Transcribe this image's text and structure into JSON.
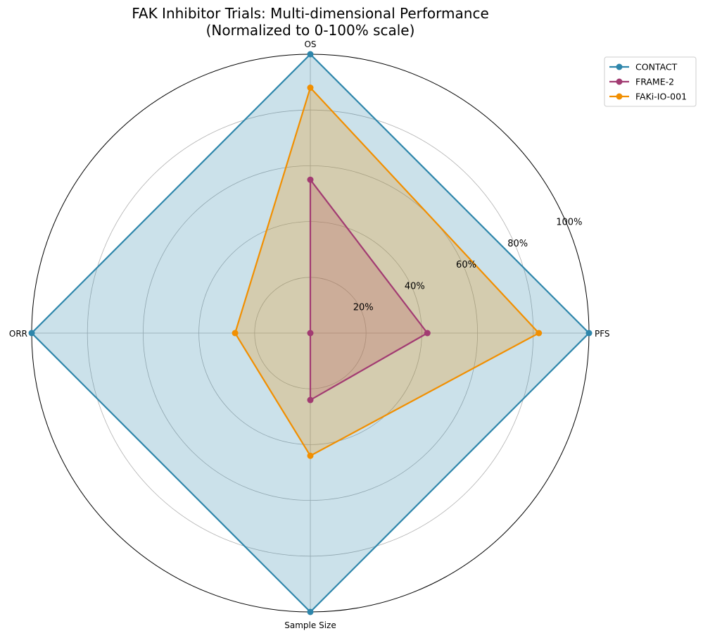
{
  "chart_data": {
    "type": "radar",
    "title": "FAK Inhibitor Trials: Multi-dimensional Performance",
    "subtitle": "(Normalized to 0-100% scale)",
    "categories": [
      "PFS",
      "OS",
      "ORR",
      "Sample Size"
    ],
    "rlim": [
      0,
      100
    ],
    "r_ticks": [
      20,
      40,
      60,
      80,
      100
    ],
    "r_tick_labels": [
      "20%",
      "40%",
      "60%",
      "80%",
      "100%"
    ],
    "grid": true,
    "legend_position": "top-right outside",
    "series": [
      {
        "name": "CONTACT",
        "color": "#2e86ab",
        "fill": "#2e86ab",
        "values": [
          100,
          100,
          100,
          100
        ]
      },
      {
        "name": "FRAME-2",
        "color": "#a23b72",
        "fill": "#a23b72",
        "values": [
          42,
          55,
          0,
          24
        ]
      },
      {
        "name": "FAKi-IO-001",
        "color": "#f18f01",
        "fill": "#f18f01",
        "values": [
          82,
          88,
          27,
          44
        ]
      }
    ]
  }
}
